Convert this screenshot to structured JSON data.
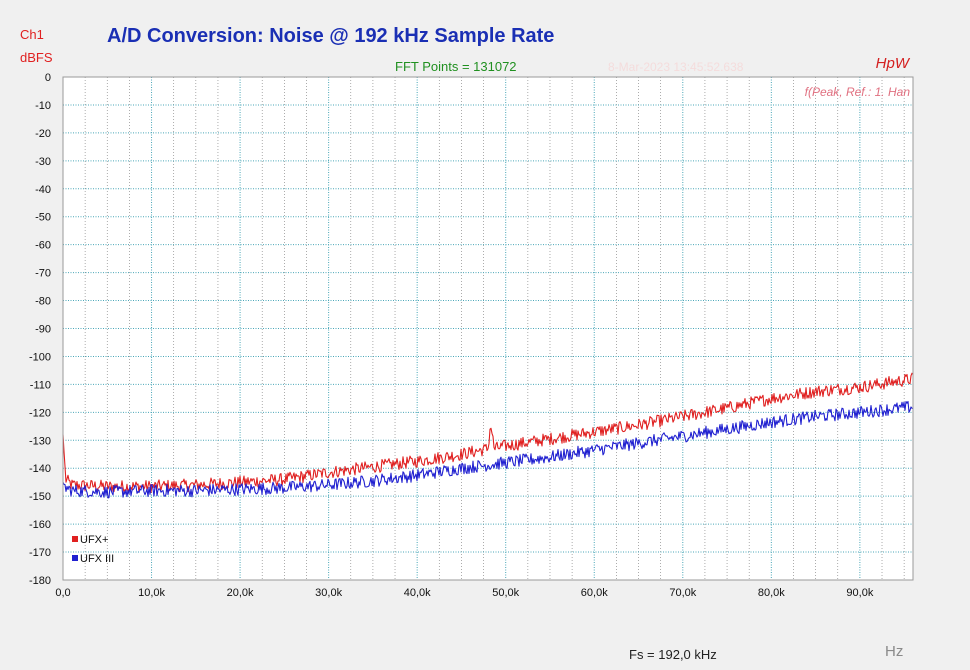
{
  "chart_data": {
    "type": "line",
    "title": "A/D Conversion: Noise @ 192 kHz Sample Rate",
    "channel_label": "Ch1",
    "ylabel": "dBFS",
    "xlabel": "Hz",
    "fft_points_label": "FFT Points = 131072",
    "timestamp": "8-Mar-2023 13:45:52.638",
    "brand": "HpW",
    "mode_label": "f(Peak, Ref.: 1. Han",
    "sample_rate_label": "Fs = 192,0 kHz",
    "xlim": [
      0,
      96000
    ],
    "ylim": [
      -180,
      0
    ],
    "x_ticks": [
      0,
      10000,
      20000,
      30000,
      40000,
      50000,
      60000,
      70000,
      80000,
      90000
    ],
    "x_tick_labels": [
      "0,0",
      "10,0k",
      "20,0k",
      "30,0k",
      "40,0k",
      "50,0k",
      "60,0k",
      "70,0k",
      "80,0k",
      "90,0k"
    ],
    "y_ticks": [
      0,
      -10,
      -20,
      -30,
      -40,
      -50,
      -60,
      -70,
      -80,
      -90,
      -100,
      -110,
      -120,
      -130,
      -140,
      -150,
      -160,
      -170,
      -180
    ],
    "y_tick_labels": [
      "0",
      "-10",
      "-20",
      "-30",
      "-40",
      "-50",
      "-60",
      "-70",
      "-80",
      "-90",
      "-100",
      "-110",
      "-120",
      "-130",
      "-140",
      "-150",
      "-160",
      "-170",
      "-180"
    ],
    "grid": true,
    "legend_position": "bottom-left",
    "series": [
      {
        "name": "UFX+",
        "color": "#e02020",
        "x": [
          0,
          300,
          1000,
          5000,
          10000,
          15000,
          20000,
          25000,
          30000,
          35000,
          40000,
          45000,
          48000,
          48300,
          48700,
          50000,
          55000,
          60000,
          65000,
          70000,
          75000,
          80000,
          85000,
          90000,
          92000,
          96000
        ],
        "y": [
          -128,
          -144,
          -146,
          -146.5,
          -146.5,
          -146,
          -145,
          -144,
          -141.5,
          -139.5,
          -137.5,
          -135,
          -133,
          -124,
          -133,
          -132,
          -129.5,
          -127,
          -124.5,
          -121.5,
          -118.5,
          -115,
          -112.5,
          -111,
          -110,
          -108
        ]
      },
      {
        "name": "UFX III",
        "color": "#2020d0",
        "x": [
          0,
          300,
          1000,
          5000,
          10000,
          15000,
          20000,
          25000,
          30000,
          35000,
          40000,
          45000,
          50000,
          55000,
          60000,
          65000,
          70000,
          75000,
          80000,
          85000,
          90000,
          96000
        ],
        "y": [
          -145,
          -147,
          -148,
          -148.5,
          -148,
          -148,
          -147.5,
          -147,
          -146,
          -144.5,
          -142.5,
          -140,
          -138,
          -136,
          -133.5,
          -131,
          -128.5,
          -126,
          -123.5,
          -121.5,
          -120,
          -118
        ]
      }
    ]
  }
}
